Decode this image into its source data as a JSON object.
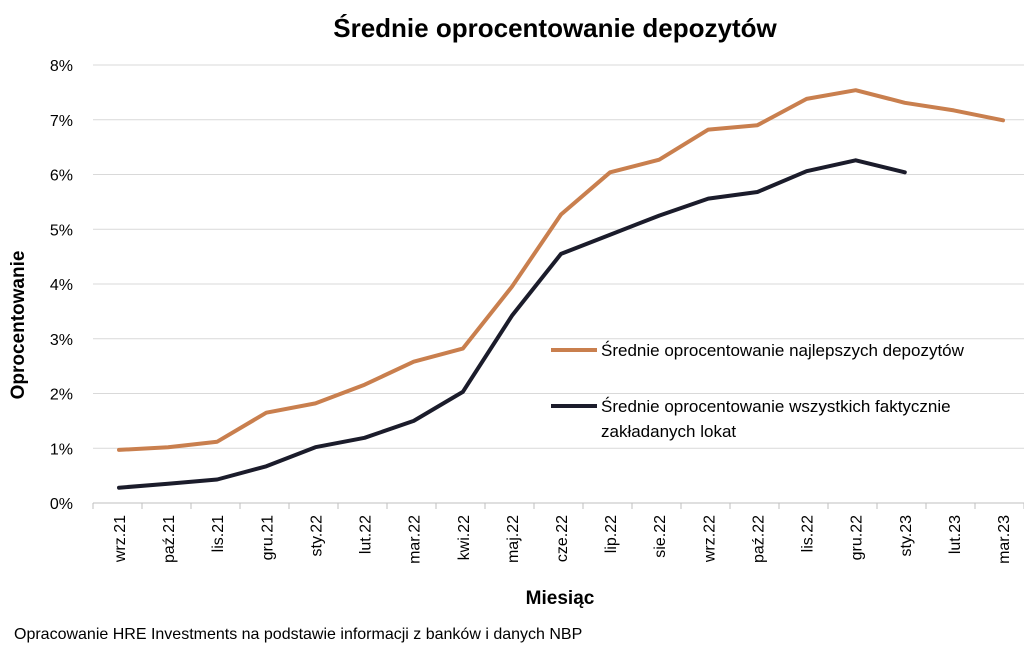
{
  "chart_data": {
    "type": "line",
    "title": "Średnie oprocentowanie depozytów",
    "xlabel": "Miesiąc",
    "ylabel": "Oprocentowanie",
    "categories": [
      "wrz.21",
      "paź.21",
      "lis.21",
      "gru.21",
      "sty.22",
      "lut.22",
      "mar.22",
      "kwi.22",
      "maj.22",
      "cze.22",
      "lip.22",
      "sie.22",
      "wrz.22",
      "paź.22",
      "lis.22",
      "gru.22",
      "sty.23",
      "lut.23",
      "mar.23"
    ],
    "y_ticks": [
      "0%",
      "1%",
      "2%",
      "3%",
      "4%",
      "5%",
      "6%",
      "7%",
      "8%"
    ],
    "ylim": [
      0,
      8
    ],
    "grid": "horizontal",
    "legend_position": "right",
    "series": [
      {
        "name": "Średnie oprocentowanie najlepszych depozytów",
        "color": "#C97F4E",
        "values": [
          0.97,
          1.02,
          1.12,
          1.65,
          1.82,
          2.16,
          2.58,
          2.82,
          3.95,
          5.27,
          6.04,
          6.27,
          6.82,
          6.9,
          7.38,
          7.54,
          7.31,
          7.17,
          6.99
        ]
      },
      {
        "name": "Średnie oprocentowanie wszystkich faktycznie zakładanych lokat",
        "legend_lines": [
          "Średnie oprocentowanie wszystkich faktycznie",
          "zakładanych lokat"
        ],
        "color": "#1B1C2B",
        "values": [
          0.28,
          0.35,
          0.43,
          0.67,
          1.02,
          1.19,
          1.5,
          2.03,
          3.42,
          4.55,
          4.9,
          5.25,
          5.56,
          5.68,
          6.06,
          6.26,
          6.04,
          null,
          null
        ]
      }
    ]
  },
  "footer": {
    "source": "Opracowanie HRE Investments na podstawie informacji z banków i danych NBP"
  }
}
